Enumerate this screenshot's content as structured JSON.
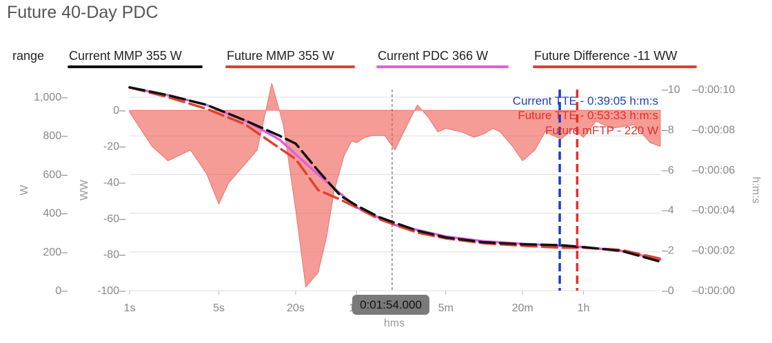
{
  "title": "Future 40-Day PDC",
  "legend": {
    "range_label": "range",
    "items": [
      {
        "label": "Current MMP  355 W",
        "color": "#111111"
      },
      {
        "label": "Future MMP  355 W",
        "color": "#e04030"
      },
      {
        "label": "Current PDC  366 W",
        "color": "#e060e0"
      },
      {
        "label": "Future Difference  -11 WW",
        "color": "#e04030"
      }
    ]
  },
  "cursor_label": "0:01:54.000",
  "annotations": {
    "current_tte": "Current TTE - 0:39:05 h:m:s",
    "future_tte": "Future TTE - 0:53:33 h:m:s",
    "future_mftp": "Future mFTP - 220 W"
  },
  "chart_data": {
    "type": "line",
    "title": "Future 40-Day PDC",
    "xlabel": "hms",
    "x_scale": "log",
    "x_ticks": [
      "1s",
      "5s",
      "20s",
      "1m",
      "5m",
      "20m",
      "1h"
    ],
    "x_tick_seconds": [
      1,
      5,
      20,
      60,
      300,
      1200,
      3600
    ],
    "x_range_seconds": [
      1,
      14400
    ],
    "y_axes": [
      {
        "label": "W",
        "ticks": [
          "1,000",
          "800",
          "600",
          "400",
          "200",
          "0"
        ],
        "range": [
          0,
          1000
        ]
      },
      {
        "label": "WW",
        "ticks": [
          "0",
          "-20",
          "-40",
          "-60",
          "-80",
          "-100"
        ],
        "range": [
          -100,
          10
        ]
      },
      {
        "label": "",
        "ticks": [
          "10",
          "8",
          "6",
          "4",
          "2",
          "0"
        ],
        "range": [
          0,
          10
        ]
      },
      {
        "label": "h:m:s",
        "ticks": [
          "0:00:10",
          "0:00:08",
          "0:00:06",
          "0:00:04",
          "0:00:02",
          "0:00:00"
        ],
        "range": [
          0,
          10
        ]
      }
    ],
    "grid": true,
    "legend_position": "top",
    "series": [
      {
        "name": "Current MMP",
        "color": "#111111",
        "style": "dashed",
        "x": [
          1,
          2,
          4,
          8,
          15,
          20,
          30,
          45,
          60,
          90,
          120,
          180,
          300,
          600,
          1200,
          2400,
          3600,
          7200,
          14400
        ],
        "y": [
          1050,
          1010,
          960,
          880,
          800,
          760,
          620,
          490,
          440,
          380,
          350,
          310,
          275,
          250,
          240,
          235,
          225,
          205,
          150
        ]
      },
      {
        "name": "Future MMP",
        "color": "#e04030",
        "style": "dashed",
        "x": [
          1,
          2,
          4,
          8,
          12,
          20,
          30,
          45,
          60,
          90,
          120,
          180,
          300,
          600,
          1200,
          2400,
          3600,
          7200,
          14400
        ],
        "y": [
          1050,
          1000,
          940,
          860,
          780,
          680,
          520,
          470,
          430,
          370,
          340,
          300,
          270,
          245,
          232,
          222,
          222,
          210,
          165
        ]
      },
      {
        "name": "Current PDC",
        "color": "#e060e0",
        "style": "solid",
        "x": [
          1,
          2,
          4,
          8,
          15,
          30,
          60,
          120,
          300,
          600,
          1200,
          2400,
          3600,
          7200,
          14400
        ],
        "y": [
          1050,
          1010,
          960,
          880,
          780,
          600,
          430,
          340,
          280,
          255,
          242,
          232,
          225,
          205,
          160
        ]
      },
      {
        "name": "Future Difference",
        "color": "#e04030",
        "style": "area",
        "axis": "WW",
        "x": [
          1,
          1.5,
          2,
          3,
          4,
          5,
          6,
          8,
          10,
          13,
          16,
          20,
          24,
          30,
          35,
          40,
          48,
          55,
          60,
          70,
          80,
          100,
          120,
          150,
          180,
          220,
          260,
          300,
          400,
          500,
          600,
          700,
          800,
          1000,
          1200,
          1500,
          1800,
          2400,
          3000,
          3600,
          4500,
          6000,
          9000,
          12000,
          14400
        ],
        "y": [
          -1,
          -20,
          -28,
          -22,
          -35,
          -52,
          -40,
          -30,
          -22,
          15,
          -8,
          -55,
          -98,
          -90,
          -70,
          -45,
          -25,
          -17,
          -18,
          -15,
          -14,
          -14,
          -22,
          -8,
          3,
          -4,
          -12,
          -10,
          -12,
          -15,
          -13,
          -10,
          -12,
          -20,
          -28,
          -22,
          -12,
          -16,
          -10,
          -15,
          -6,
          -10,
          -8,
          -18,
          -20
        ]
      }
    ],
    "markers": [
      {
        "name": "Current TTE",
        "x_seconds": 2345,
        "color": "#1a3ccc",
        "style": "dashed"
      },
      {
        "name": "Future TTE",
        "x_seconds": 3213,
        "color": "#e0302a",
        "style": "dashed"
      }
    ],
    "cursor_x_seconds": 114
  }
}
